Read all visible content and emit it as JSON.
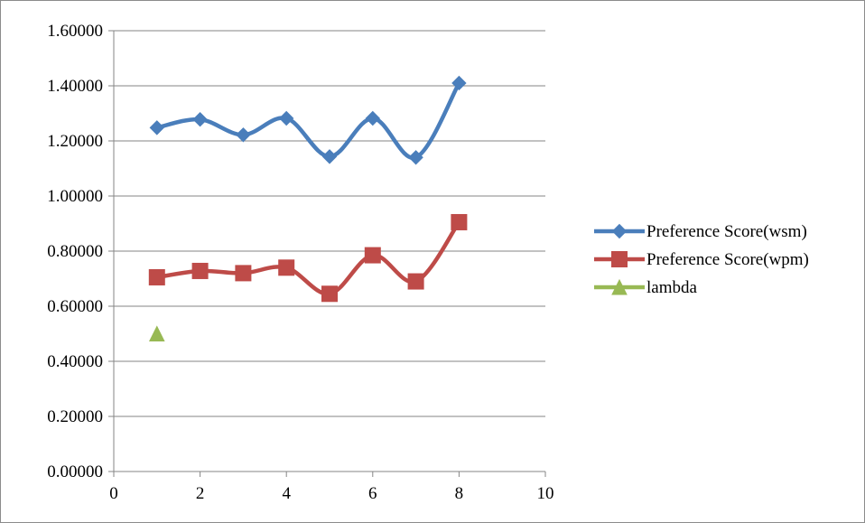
{
  "chart_data": {
    "type": "scatter",
    "title": "",
    "xlabel": "",
    "ylabel": "",
    "xlim": [
      0,
      10
    ],
    "ylim": [
      0,
      1.6
    ],
    "x_ticks": [
      "0",
      "2",
      "4",
      "6",
      "8",
      "10"
    ],
    "y_ticks": [
      "0.00000",
      "0.20000",
      "0.40000",
      "0.60000",
      "0.80000",
      "1.00000",
      "1.20000",
      "1.40000",
      "1.60000"
    ],
    "grid": "horizontal",
    "legend_position": "right",
    "series": [
      {
        "name": "Preference Score(wsm)",
        "color": "#4a7ebb",
        "marker": "diamond",
        "smooth": true,
        "x": [
          1,
          2,
          3,
          4,
          5,
          6,
          7,
          8
        ],
        "y": [
          1.248,
          1.278,
          1.222,
          1.282,
          1.143,
          1.282,
          1.14,
          1.41
        ]
      },
      {
        "name": "Preference Score(wpm)",
        "color": "#be4b48",
        "marker": "square",
        "smooth": true,
        "x": [
          1,
          2,
          3,
          4,
          5,
          6,
          7,
          8
        ],
        "y": [
          0.705,
          0.728,
          0.72,
          0.74,
          0.645,
          0.785,
          0.69,
          0.905
        ]
      },
      {
        "name": "lambda",
        "color": "#98b954",
        "marker": "triangle",
        "smooth": false,
        "x": [
          1
        ],
        "y": [
          0.5
        ]
      }
    ]
  }
}
